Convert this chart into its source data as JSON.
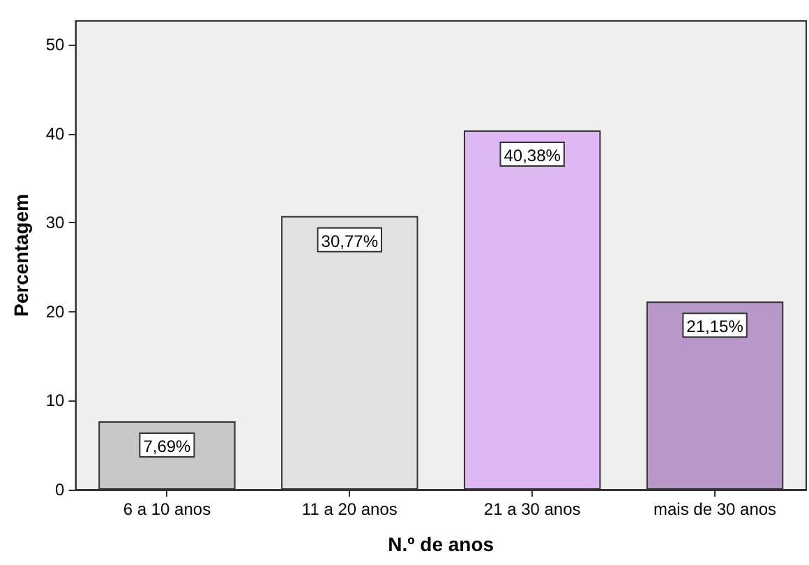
{
  "chart_data": {
    "type": "bar",
    "xlabel": "N.º de anos",
    "ylabel": "Percentagem",
    "categories": [
      "6 a 10 anos",
      "11 a 20 anos",
      "21 a 30 anos",
      "mais de 30 anos"
    ],
    "values": [
      7.69,
      30.77,
      40.38,
      21.15
    ],
    "colors": [
      "#c8c8c8",
      "#e2e2e2",
      "#deb8f2",
      "#b898c8"
    ],
    "value_labels": [
      "7,69%",
      "30,77%",
      "40,38%",
      "21,15%"
    ],
    "ylim": [
      0,
      52.7
    ],
    "yticks": [
      0,
      10,
      20,
      30,
      40,
      50
    ]
  }
}
